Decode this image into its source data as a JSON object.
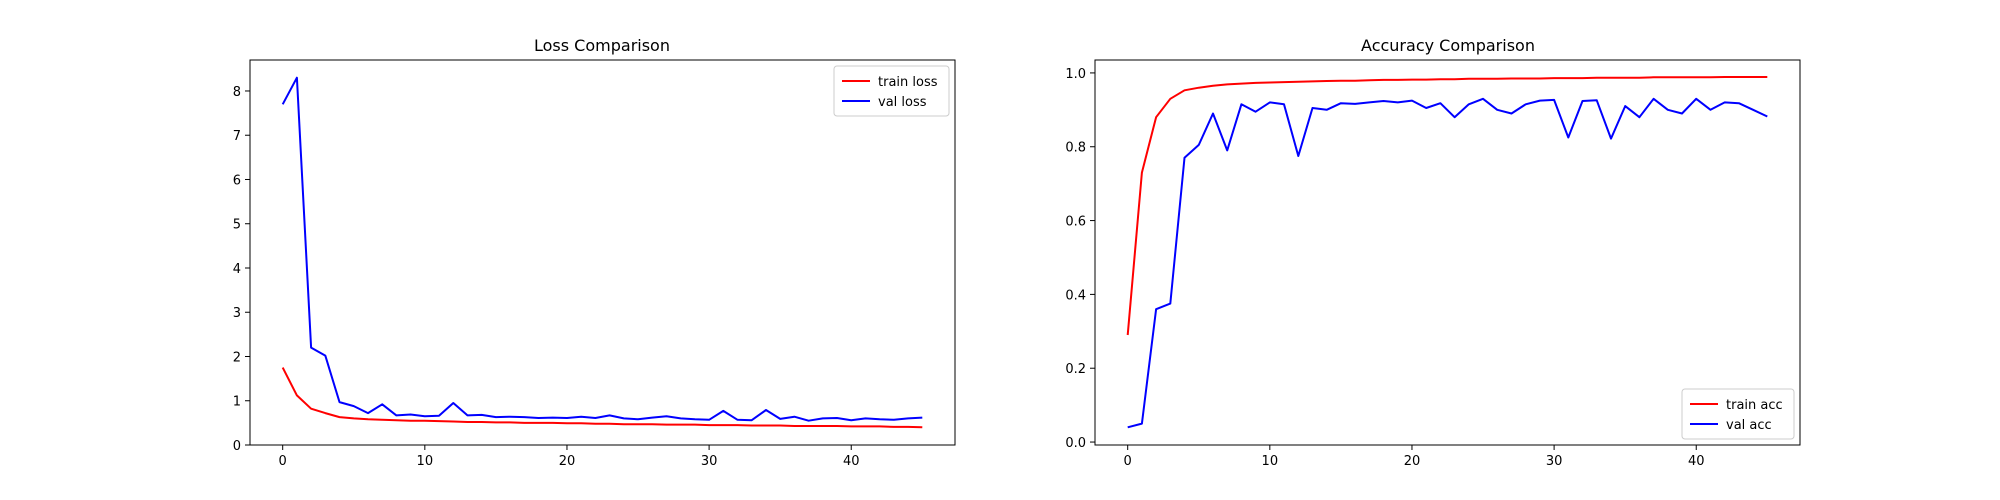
{
  "chart_data": [
    {
      "type": "line",
      "title": "Loss Comparison",
      "xlabel": "",
      "ylabel": "",
      "xlim": [
        -2.3,
        47.3
      ],
      "ylim": [
        0,
        8.7
      ],
      "x_ticks": [
        0,
        10,
        20,
        30,
        40
      ],
      "y_ticks": [
        0,
        1,
        2,
        3,
        4,
        5,
        6,
        7,
        8
      ],
      "legend_position": "top-right",
      "grid": false,
      "x": [
        0,
        1,
        2,
        3,
        4,
        5,
        6,
        7,
        8,
        9,
        10,
        11,
        12,
        13,
        14,
        15,
        16,
        17,
        18,
        19,
        20,
        21,
        22,
        23,
        24,
        25,
        26,
        27,
        28,
        29,
        30,
        31,
        32,
        33,
        34,
        35,
        36,
        37,
        38,
        39,
        40,
        41,
        42,
        43,
        44,
        45
      ],
      "series": [
        {
          "name": "train loss",
          "color": "#ff0000",
          "values": [
            1.75,
            1.12,
            0.82,
            0.72,
            0.63,
            0.6,
            0.58,
            0.57,
            0.56,
            0.55,
            0.55,
            0.54,
            0.53,
            0.52,
            0.52,
            0.51,
            0.51,
            0.5,
            0.5,
            0.5,
            0.49,
            0.49,
            0.48,
            0.48,
            0.47,
            0.47,
            0.47,
            0.46,
            0.46,
            0.46,
            0.45,
            0.45,
            0.45,
            0.44,
            0.44,
            0.44,
            0.43,
            0.43,
            0.43,
            0.43,
            0.42,
            0.42,
            0.42,
            0.41,
            0.41,
            0.4
          ]
        },
        {
          "name": "val loss",
          "color": "#0000ff",
          "values": [
            7.7,
            8.3,
            2.2,
            2.02,
            0.97,
            0.88,
            0.72,
            0.92,
            0.67,
            0.69,
            0.65,
            0.66,
            0.95,
            0.67,
            0.68,
            0.63,
            0.64,
            0.63,
            0.61,
            0.62,
            0.61,
            0.64,
            0.61,
            0.67,
            0.6,
            0.58,
            0.62,
            0.65,
            0.6,
            0.58,
            0.57,
            0.77,
            0.57,
            0.56,
            0.79,
            0.59,
            0.64,
            0.55,
            0.6,
            0.61,
            0.56,
            0.6,
            0.58,
            0.57,
            0.6,
            0.62
          ]
        }
      ]
    },
    {
      "type": "line",
      "title": "Accuracy Comparison",
      "xlabel": "",
      "ylabel": "",
      "xlim": [
        -2.3,
        47.3
      ],
      "ylim": [
        -0.008,
        1.035
      ],
      "x_ticks": [
        0,
        10,
        20,
        30,
        40
      ],
      "y_ticks": [
        0.0,
        0.2,
        0.4,
        0.6,
        0.8,
        1.0
      ],
      "legend_position": "bottom-right",
      "grid": false,
      "x": [
        0,
        1,
        2,
        3,
        4,
        5,
        6,
        7,
        8,
        9,
        10,
        11,
        12,
        13,
        14,
        15,
        16,
        17,
        18,
        19,
        20,
        21,
        22,
        23,
        24,
        25,
        26,
        27,
        28,
        29,
        30,
        31,
        32,
        33,
        34,
        35,
        36,
        37,
        38,
        39,
        40,
        41,
        42,
        43,
        44,
        45
      ],
      "series": [
        {
          "name": "train acc",
          "color": "#ff0000",
          "values": [
            0.29,
            0.73,
            0.88,
            0.93,
            0.953,
            0.96,
            0.965,
            0.969,
            0.971,
            0.973,
            0.974,
            0.975,
            0.976,
            0.977,
            0.978,
            0.979,
            0.979,
            0.98,
            0.981,
            0.981,
            0.982,
            0.982,
            0.983,
            0.983,
            0.984,
            0.984,
            0.984,
            0.985,
            0.985,
            0.985,
            0.986,
            0.986,
            0.986,
            0.987,
            0.987,
            0.987,
            0.987,
            0.988,
            0.988,
            0.988,
            0.988,
            0.988,
            0.989,
            0.989,
            0.989,
            0.989
          ]
        },
        {
          "name": "val acc",
          "color": "#0000ff",
          "values": [
            0.04,
            0.05,
            0.36,
            0.375,
            0.77,
            0.805,
            0.89,
            0.79,
            0.915,
            0.895,
            0.92,
            0.915,
            0.775,
            0.905,
            0.9,
            0.918,
            0.916,
            0.92,
            0.924,
            0.92,
            0.925,
            0.905,
            0.918,
            0.88,
            0.915,
            0.93,
            0.9,
            0.89,
            0.915,
            0.925,
            0.927,
            0.825,
            0.924,
            0.926,
            0.822,
            0.91,
            0.88,
            0.93,
            0.9,
            0.89,
            0.93,
            0.9,
            0.92,
            0.918,
            0.9,
            0.882
          ]
        }
      ]
    }
  ]
}
